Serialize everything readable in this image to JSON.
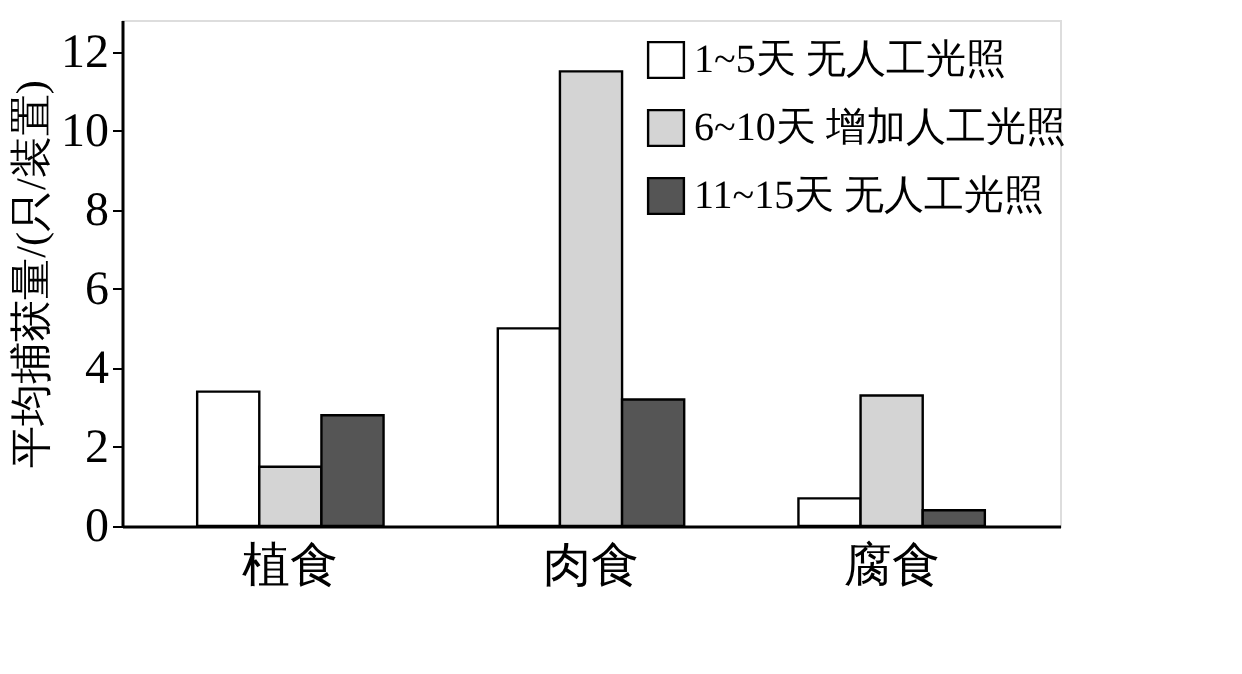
{
  "chart_data": {
    "type": "bar",
    "ylabel": "平均捕获量/(只/装置)",
    "categories": [
      "植食",
      "肉食",
      "腐食"
    ],
    "series": [
      {
        "name": "1~5天 无人工光照",
        "color": "#ffffff",
        "values": [
          3.4,
          5.0,
          0.7
        ]
      },
      {
        "name": "6~10天 增加人工光照",
        "color": "#d4d4d4",
        "values": [
          1.5,
          11.5,
          3.3
        ]
      },
      {
        "name": "11~15天 无人工光照",
        "color": "#555555",
        "values": [
          2.8,
          3.2,
          0.4
        ]
      }
    ],
    "ylim": [
      0,
      12.8
    ],
    "yticks": [
      0,
      2,
      4,
      6,
      8,
      10,
      12
    ],
    "grid": false,
    "legend": "top right"
  }
}
